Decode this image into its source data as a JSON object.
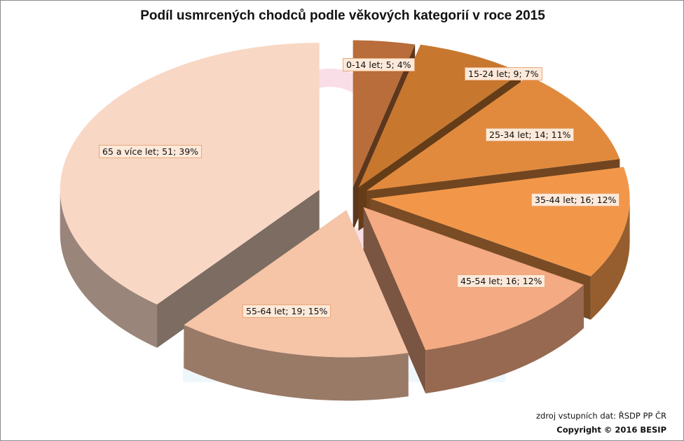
{
  "chart_data": {
    "type": "pie",
    "title": "Podíl usmrcených chodců podle věkových kategorií v roce 2015",
    "slices": [
      {
        "category": "0-14 let",
        "value": 5,
        "percent": 4,
        "label": "0-14 let; 5; 4%",
        "color": "#b86d3a"
      },
      {
        "category": "15-24 let",
        "value": 9,
        "percent": 7,
        "label": "15-24 let; 9; 7%",
        "color": "#c8772f"
      },
      {
        "category": "25-34 let",
        "value": 14,
        "percent": 11,
        "label": "25-34 let; 14; 11%",
        "color": "#e18a3d"
      },
      {
        "category": "35-44 let",
        "value": 16,
        "percent": 12,
        "label": "35-44 let; 16; 12%",
        "color": "#f2974a"
      },
      {
        "category": "45-54 let",
        "value": 16,
        "percent": 12,
        "label": "45-54 let; 16; 12%",
        "color": "#f4aa82"
      },
      {
        "category": "55-64 let",
        "value": 19,
        "percent": 15,
        "label": "55-64 let; 19; 15%",
        "color": "#f6c4a6"
      },
      {
        "category": "65 a více let",
        "value": 51,
        "percent": 39,
        "label": "65 a více let; 51; 39%",
        "color": "#f8d7c4"
      }
    ],
    "legend": "none",
    "style": "3d-exploded"
  },
  "footer": {
    "source": "zdroj vstupních dat: ŘSDP PP ČR",
    "copyright": "Copyright © 2016 BESIP"
  }
}
